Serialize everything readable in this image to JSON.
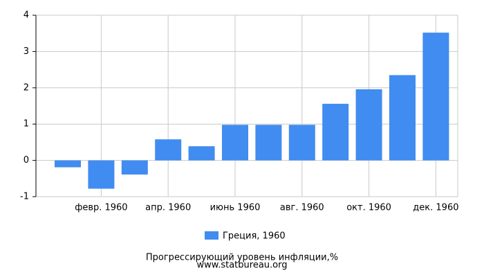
{
  "chart_data": {
    "type": "bar",
    "title": "Прогрессирующий уровень инфляции,%",
    "subtitle": "www.statbureau.org",
    "categories": [
      null,
      "февр. 1960",
      null,
      "апр. 1960",
      null,
      "июнь 1960",
      null,
      "авг. 1960",
      null,
      "окт. 1960",
      null,
      "дек. 1960"
    ],
    "series": [
      {
        "name": "Греция, 1960",
        "color": "#418cf0",
        "values": [
          -0.19,
          -0.78,
          -0.39,
          0.58,
          0.39,
          0.98,
          0.98,
          0.98,
          1.56,
          1.96,
          2.35,
          3.52
        ]
      }
    ],
    "ylim": [
      -1,
      4
    ],
    "yticks": [
      -1,
      0,
      1,
      2,
      3,
      4
    ],
    "grid": true
  }
}
